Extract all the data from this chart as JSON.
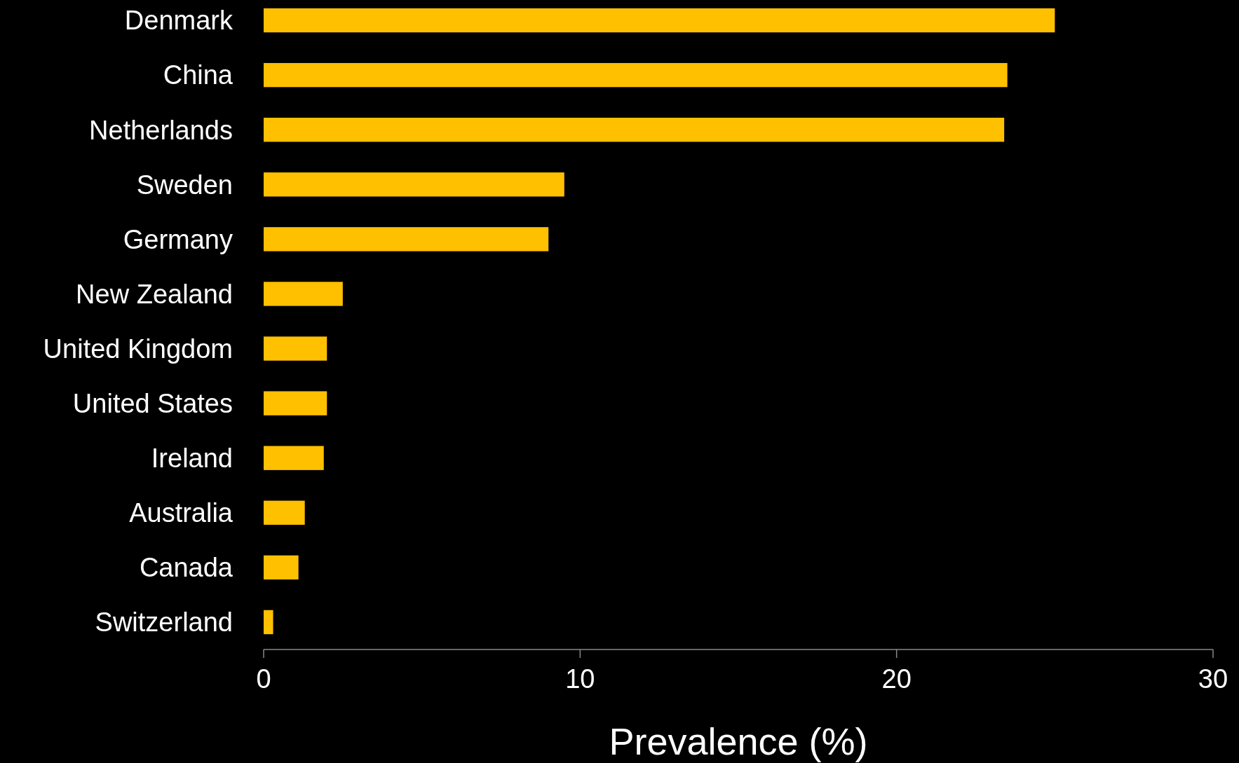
{
  "chart_data": {
    "type": "bar",
    "orientation": "horizontal",
    "xlabel": "Prevalence (%)",
    "categories": [
      "Denmark",
      "China",
      "Netherlands",
      "Sweden",
      "Germany",
      "New Zealand",
      "United Kingdom",
      "United States",
      "Ireland",
      "Australia",
      "Canada",
      "Switzerland"
    ],
    "values": [
      25.0,
      23.5,
      23.4,
      9.5,
      9.0,
      2.5,
      2.0,
      2.0,
      1.9,
      1.3,
      1.1,
      0.3
    ],
    "color": "#ffc000",
    "xlim": [
      0,
      30
    ],
    "xticks": [
      0,
      10,
      20,
      30
    ]
  }
}
